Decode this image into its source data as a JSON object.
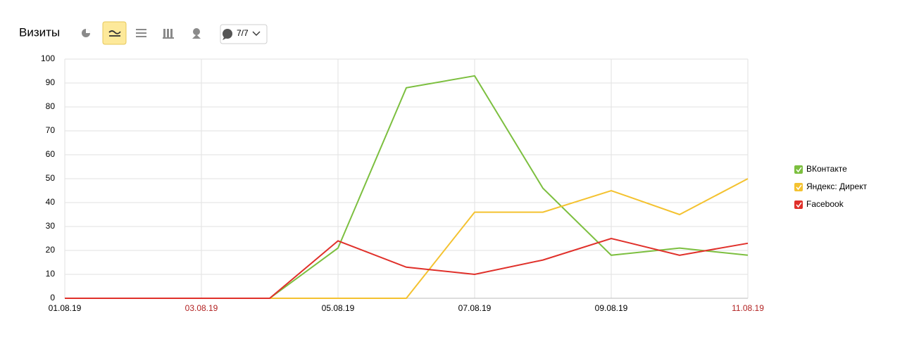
{
  "toolbar": {
    "counter": "7/7"
  },
  "chart_data": {
    "type": "line",
    "title": "Визиты",
    "categories": [
      "01.08.19",
      null,
      "03.08.19",
      null,
      "05.08.19",
      null,
      "07.08.19",
      null,
      "09.08.19",
      null,
      "11.08.19"
    ],
    "category_colors": [
      "#000000",
      null,
      "#b22222",
      null,
      "#000000",
      null,
      "#000000",
      null,
      "#000000",
      null,
      "#b22222"
    ],
    "series": [
      {
        "name": "ВКонтакте",
        "color": "#7cbf3f",
        "values": [
          0,
          0,
          0,
          0,
          21,
          88,
          93,
          46,
          18,
          21,
          18
        ]
      },
      {
        "name": "Яндекс: Директ",
        "color": "#f4c230",
        "values": [
          0,
          0,
          0,
          0,
          0,
          0,
          36,
          36,
          45,
          35,
          50
        ]
      },
      {
        "name": "Facebook",
        "color": "#e0302a",
        "values": [
          0,
          0,
          0,
          0,
          24,
          13,
          10,
          16,
          25,
          18,
          23
        ]
      }
    ],
    "ylim": [
      0,
      100
    ],
    "yticks": [
      0,
      10,
      20,
      30,
      40,
      50,
      60,
      70,
      80,
      90,
      100
    ],
    "grid": true,
    "legend": "right"
  }
}
